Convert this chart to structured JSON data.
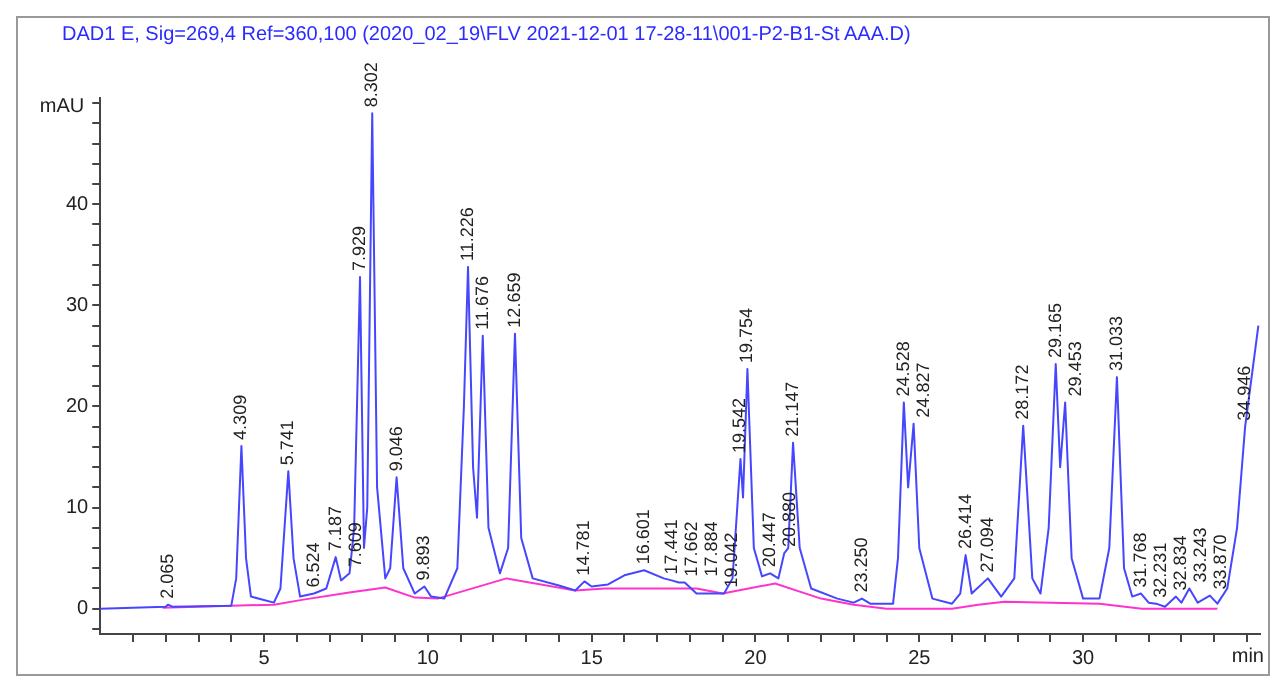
{
  "chart_data": {
    "type": "line",
    "title": "DAD1 E, Sig=269,4 Ref=360,100 (2020_02_19\\FLV 2021-12-01 17-28-11\\001-P2-B1-St AAA.D)",
    "xlabel": "min",
    "ylabel": "mAU",
    "xlim": [
      0,
      35.4
    ],
    "ylim": [
      -2.5,
      50.5
    ],
    "xticks": [
      {
        "value": 1,
        "label": null
      },
      {
        "value": 2,
        "label": null
      },
      {
        "value": 3,
        "label": null
      },
      {
        "value": 4,
        "label": null
      },
      5,
      {
        "value": 6,
        "label": null
      },
      {
        "value": 7,
        "label": null
      },
      {
        "value": 8,
        "label": null
      },
      {
        "value": 9,
        "label": null
      },
      10,
      {
        "value": 11,
        "label": null
      },
      {
        "value": 12,
        "label": null
      },
      {
        "value": 13,
        "label": null
      },
      {
        "value": 14,
        "label": null
      },
      15,
      {
        "value": 16,
        "label": null
      },
      {
        "value": 17,
        "label": null
      },
      {
        "value": 18,
        "label": null
      },
      {
        "value": 19,
        "label": null
      },
      20,
      {
        "value": 21,
        "label": null
      },
      {
        "value": 22,
        "label": null
      },
      {
        "value": 23,
        "label": null
      },
      {
        "value": 24,
        "label": null
      },
      25,
      {
        "value": 26,
        "label": null
      },
      {
        "value": 27,
        "label": null
      },
      {
        "value": 28,
        "label": null
      },
      {
        "value": 29,
        "label": null
      },
      30,
      {
        "value": 31,
        "label": null
      },
      {
        "value": 32,
        "label": null
      },
      {
        "value": 33,
        "label": null
      },
      {
        "value": 34,
        "label": null
      },
      {
        "value": 35,
        "label": null
      }
    ],
    "yticks": [
      {
        "value": -2,
        "label": null
      },
      0,
      {
        "value": 2,
        "label": null
      },
      {
        "value": 4,
        "label": null
      },
      {
        "value": 6,
        "label": null
      },
      {
        "value": 8,
        "label": null
      },
      10,
      {
        "value": 12,
        "label": null
      },
      {
        "value": 14,
        "label": null
      },
      {
        "value": 16,
        "label": null
      },
      {
        "value": 18,
        "label": null
      },
      20,
      {
        "value": 22,
        "label": null
      },
      {
        "value": 24,
        "label": null
      },
      {
        "value": 26,
        "label": null
      },
      {
        "value": 28,
        "label": null
      },
      30,
      {
        "value": 32,
        "label": null
      },
      {
        "value": 34,
        "label": null
      },
      {
        "value": 36,
        "label": null
      },
      {
        "value": 38,
        "label": null
      },
      40,
      {
        "value": 42,
        "label": null
      },
      {
        "value": 44,
        "label": null
      },
      {
        "value": 46,
        "label": null
      },
      {
        "value": 48,
        "label": null
      },
      {
        "value": 50,
        "label": null
      }
    ],
    "grid": false,
    "legend": false,
    "marker": "none",
    "line_style": "solid",
    "series": [
      {
        "color": "#4646ff",
        "x": [
          0,
          2.0,
          2.065,
          2.2,
          4.0,
          4.15,
          4.309,
          4.45,
          4.6,
          5.3,
          5.5,
          5.741,
          5.9,
          6.1,
          6.524,
          6.9,
          7.187,
          7.35,
          7.609,
          7.75,
          7.929,
          8.05,
          8.15,
          8.302,
          8.45,
          8.7,
          8.85,
          9.046,
          9.25,
          9.6,
          9.893,
          10.1,
          10.5,
          10.9,
          11.1,
          11.226,
          11.38,
          11.5,
          11.676,
          11.85,
          12.2,
          12.45,
          12.659,
          12.85,
          13.2,
          14.0,
          14.5,
          14.781,
          15.0,
          15.5,
          16.0,
          16.601,
          17.2,
          17.441,
          17.66,
          17.84,
          18.2,
          19.042,
          19.3,
          19.542,
          19.62,
          19.754,
          19.95,
          20.2,
          20.447,
          20.7,
          20.88,
          21.0,
          21.147,
          21.35,
          21.7,
          22.5,
          23.0,
          23.25,
          23.5,
          24.2,
          24.35,
          24.528,
          24.66,
          24.827,
          25.0,
          25.4,
          26.0,
          26.25,
          26.414,
          26.6,
          27.094,
          27.5,
          27.9,
          28.172,
          28.45,
          28.7,
          28.95,
          29.165,
          29.3,
          29.453,
          29.65,
          30.0,
          30.5,
          30.8,
          31.033,
          31.25,
          31.5,
          31.768,
          32.0,
          32.231,
          32.5,
          32.834,
          33.0,
          33.243,
          33.5,
          33.87,
          34.1,
          34.4,
          34.7,
          34.946,
          35.35
        ],
        "values": [
          0,
          0.2,
          0.4,
          0.2,
          0.3,
          3,
          16.1,
          5,
          1.2,
          0.6,
          2,
          13.6,
          5,
          1.2,
          1.5,
          2,
          5.1,
          2.8,
          3.5,
          8,
          32.8,
          6,
          10,
          49.0,
          12,
          3,
          4,
          13.0,
          4,
          1.5,
          2.2,
          1.2,
          1.0,
          4,
          20,
          33.8,
          14,
          9,
          27.0,
          8,
          3.5,
          6,
          27.2,
          7,
          3,
          2.3,
          1.8,
          2.7,
          2.2,
          2.4,
          3.3,
          3.8,
          3,
          2.8,
          2.6,
          2.6,
          1.5,
          1.5,
          3,
          14.8,
          11,
          23.7,
          6,
          3.2,
          3.5,
          3,
          5.5,
          6,
          16.4,
          6,
          2,
          1,
          0.6,
          1,
          0.5,
          0.5,
          5,
          20.4,
          12,
          18.3,
          6,
          1,
          0.5,
          1.5,
          5.3,
          1.5,
          3,
          1.2,
          3,
          18.1,
          3,
          1.5,
          8,
          24.2,
          14,
          20.4,
          5,
          1,
          1,
          6,
          22.9,
          4,
          1.2,
          1.5,
          0.6,
          0.5,
          0.2,
          1.2,
          0.6,
          2.0,
          0.6,
          1.3,
          0.5,
          2,
          8,
          18,
          28
        ]
      },
      {
        "color": "#ff33cc",
        "x": [
          1.9,
          4.0,
          5.3,
          6.2,
          7.6,
          8.7,
          9.6,
          10.3,
          12.4,
          14.5,
          15.4,
          18.2,
          19.0,
          20.6,
          22.0,
          23.0,
          24.0,
          26.0,
          26.8,
          27.6,
          30.5,
          31.8,
          34.1
        ],
        "values": [
          0.1,
          0.3,
          0.4,
          0.9,
          1.6,
          2.1,
          1.1,
          1.0,
          3.0,
          1.8,
          2.0,
          2.0,
          1.5,
          2.5,
          1.0,
          0.4,
          0,
          0,
          0.4,
          0.7,
          0.5,
          0,
          0
        ]
      }
    ],
    "annotations": [
      {
        "text": "2.065",
        "x": 2.065,
        "y": 0.4
      },
      {
        "text": "4.309",
        "x": 4.309,
        "y": 16.1
      },
      {
        "text": "5.741",
        "x": 5.741,
        "y": 13.6
      },
      {
        "text": "6.524",
        "x": 6.524,
        "y": 1.5
      },
      {
        "text": "7.187",
        "x": 7.187,
        "y": 5.1
      },
      {
        "text": "7.609",
        "x": 7.609,
        "y": 3.5
      },
      {
        "text": "7.929",
        "x": 7.929,
        "y": 32.8
      },
      {
        "text": "8.302",
        "x": 8.302,
        "y": 49.0
      },
      {
        "text": "9.046",
        "x": 9.046,
        "y": 13.0
      },
      {
        "text": "9.893",
        "x": 9.893,
        "y": 2.2
      },
      {
        "text": "11.226",
        "x": 11.226,
        "y": 33.8
      },
      {
        "text": "11.676",
        "x": 11.676,
        "y": 27.0
      },
      {
        "text": "12.659",
        "x": 12.659,
        "y": 27.2
      },
      {
        "text": "14.781",
        "x": 14.781,
        "y": 2.7
      },
      {
        "text": "16.601",
        "x": 16.601,
        "y": 3.8
      },
      {
        "text": "17.441",
        "x": 17.441,
        "y": 2.8
      },
      {
        "text": "17.662",
        "x": 17.66,
        "y": 2.6
      },
      {
        "text": "17.884",
        "x": 17.84,
        "y": 2.6
      },
      {
        "text": "19.042",
        "x": 19.042,
        "y": 1.5
      },
      {
        "text": "19.542",
        "x": 19.542,
        "y": 14.8
      },
      {
        "text": "19.754",
        "x": 19.754,
        "y": 23.7
      },
      {
        "text": "20.447",
        "x": 20.447,
        "y": 3.5
      },
      {
        "text": "20.880",
        "x": 20.88,
        "y": 5.5
      },
      {
        "text": "21.147",
        "x": 21.147,
        "y": 16.4
      },
      {
        "text": "23.250",
        "x": 23.25,
        "y": 1
      },
      {
        "text": "24.528",
        "x": 24.528,
        "y": 20.4
      },
      {
        "text": "24.827",
        "x": 24.827,
        "y": 18.3
      },
      {
        "text": "26.414",
        "x": 26.414,
        "y": 5.3
      },
      {
        "text": "27.094",
        "x": 27.094,
        "y": 3
      },
      {
        "text": "28.172",
        "x": 28.172,
        "y": 18.1
      },
      {
        "text": "29.165",
        "x": 29.165,
        "y": 24.2
      },
      {
        "text": "29.453",
        "x": 29.453,
        "y": 20.4
      },
      {
        "text": "31.033",
        "x": 31.033,
        "y": 22.9
      },
      {
        "text": "31.768",
        "x": 31.768,
        "y": 1.5
      },
      {
        "text": "32.231",
        "x": 32.231,
        "y": 0.5
      },
      {
        "text": "32.834",
        "x": 32.834,
        "y": 1.2
      },
      {
        "text": "33.243",
        "x": 33.243,
        "y": 2.0
      },
      {
        "text": "33.870",
        "x": 33.87,
        "y": 1.3
      },
      {
        "text": "34.946",
        "x": 34.946,
        "y": 18
      }
    ]
  }
}
